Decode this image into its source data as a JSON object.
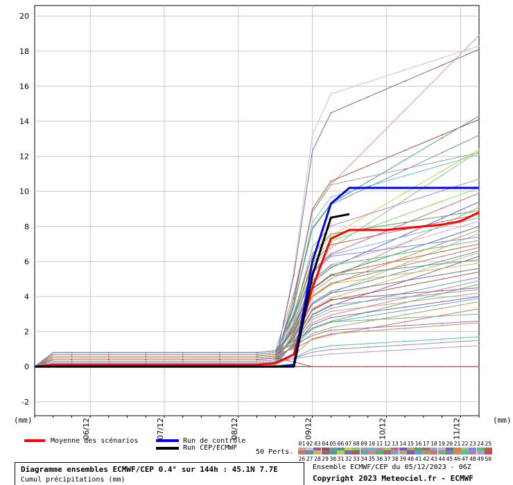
{
  "chart_data": {
    "type": "line",
    "x_labels": [
      "06/12",
      "07/12",
      "08/12",
      "09/12",
      "10/12",
      "11/12"
    ],
    "y_ticks": [
      -2,
      0,
      2,
      4,
      6,
      8,
      10,
      12,
      14,
      16,
      18,
      20
    ],
    "ylim": [
      -2.8,
      20.6
    ],
    "y_unit_left": "(mm)",
    "y_unit_right": "(mm)",
    "x_steps": [
      0,
      6,
      12,
      18,
      24,
      30,
      36,
      42,
      48,
      54,
      60,
      66,
      72,
      78,
      84,
      90,
      96,
      102,
      108,
      114,
      120,
      126,
      132,
      138,
      144
    ],
    "series_main": [
      {
        "name": "Moyenne des scénarios",
        "color": "#ff0000",
        "values": [
          0,
          0.1,
          0.1,
          0.1,
          0.1,
          0.1,
          0.1,
          0.1,
          0.1,
          0.1,
          0.1,
          0.1,
          0.1,
          0.2,
          0.7,
          4.5,
          7.3,
          7.8,
          7.8,
          7.8,
          7.9,
          8.0,
          8.1,
          8.3,
          8.8
        ]
      },
      {
        "name": "Run de contrôle",
        "color": "#0000ff",
        "values": [
          0,
          0,
          0,
          0,
          0,
          0,
          0,
          0,
          0,
          0,
          0,
          0,
          0,
          0,
          0.1,
          6.0,
          9.3,
          10.2,
          10.2,
          10.2,
          10.2,
          10.2,
          10.2,
          10.2,
          10.2
        ]
      },
      {
        "name": "Run CEP/ECMWF",
        "color": "#000000",
        "values": [
          0,
          0,
          0,
          0,
          0,
          0,
          0,
          0,
          0,
          0,
          0,
          0,
          0,
          0,
          0,
          5.2,
          8.5,
          8.7
        ]
      }
    ],
    "ensemble_finals": [
      18.9,
      18.3,
      18.1,
      14.1,
      13.2,
      14.3,
      12.4,
      12.3,
      12.2,
      12.1,
      10.7,
      10.2,
      9.9,
      9.4,
      9.1,
      8.9,
      8.7,
      8.5,
      8.3,
      8.0,
      7.8,
      7.6,
      7.4,
      7.2,
      7.0,
      6.8,
      6.6,
      6.5,
      6.3,
      6.1,
      5.9,
      5.6,
      5.4,
      5.1,
      4.9,
      4.7,
      4.5,
      4.4,
      4.2,
      4.0,
      3.9,
      3.7,
      3.3,
      3.0,
      2.6,
      2.5,
      1.7,
      1.5,
      1.2,
      0.0
    ]
  },
  "legend": {
    "mean": "Moyenne des scénarios",
    "control": "Run de contrôle",
    "cep": "Run CEP/ECMWF",
    "perts": "50 Perts."
  },
  "member_numbers_top": [
    "01",
    "02",
    "03",
    "04",
    "05",
    "06",
    "07",
    "08",
    "09",
    "10",
    "11",
    "12",
    "13",
    "14",
    "15",
    "16",
    "17",
    "18",
    "19",
    "20",
    "21",
    "22",
    "23",
    "24",
    "25"
  ],
  "member_numbers_bottom": [
    "26",
    "27",
    "28",
    "29",
    "30",
    "31",
    "32",
    "33",
    "34",
    "35",
    "36",
    "37",
    "38",
    "39",
    "40",
    "41",
    "42",
    "43",
    "44",
    "45",
    "46",
    "47",
    "48",
    "49",
    "50"
  ],
  "member_colors": [
    "#d89a9a",
    "#c0c0d8",
    "#8a5a9a",
    "#a05040",
    "#7090c0",
    "#40a080",
    "#d0d040",
    "#80c080",
    "#a0a0a0",
    "#60c0c0",
    "#c080c0",
    "#90d060",
    "#d06080",
    "#6060c0",
    "#c0a060",
    "#60a060",
    "#c06060",
    "#80b0d0",
    "#d0a0d0",
    "#4080a0",
    "#e08040",
    "#a0c080",
    "#8080ff",
    "#60c060",
    "#c06040",
    "#b08070",
    "#6090b0",
    "#d0b060",
    "#906090",
    "#50a090",
    "#c0c060",
    "#7070b0",
    "#a06050",
    "#70a0a0",
    "#d080a0",
    "#60b060",
    "#b06070",
    "#80a0c0",
    "#c0a080",
    "#8060a0",
    "#60a0d0",
    "#a0a060",
    "#d07070",
    "#70b080",
    "#9070c0",
    "#c09060",
    "#50c0a0",
    "#b080b0",
    "#a0a0d0",
    "#c05050"
  ],
  "footer": {
    "title": "Diagramme ensembles ECMWF/CEP 0.4° sur 144h : 45.1N 7.7E",
    "subtitle": "Cumul précipitations (mm)",
    "ensemble": "Ensemble ECMWF/CEP du 05/12/2023 - 06Z",
    "copyright": "Copyright 2023 Meteociel.fr - ECMWF"
  }
}
